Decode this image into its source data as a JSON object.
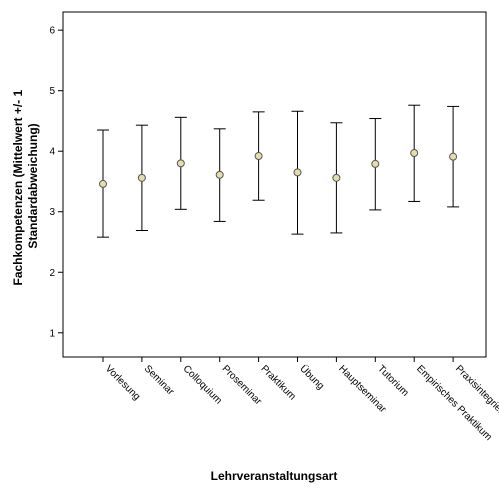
{
  "chart_data": {
    "type": "errorbar",
    "title": "",
    "xlabel": "Lehrveranstaltungsart",
    "ylabel_lines": [
      "Fachkompetenzen (Mittelwert +/- 1",
      "Standardabweichung)"
    ],
    "ylim": [
      0.6,
      6.3
    ],
    "yticks": [
      1,
      2,
      3,
      4,
      5,
      6
    ],
    "categories": [
      "Vorlesung",
      "Seminar",
      "Colloquium",
      "Proseminar",
      "Praktikum",
      "Übung",
      "Hauptseminar",
      "Tutorium",
      "Empirisches Praktikum",
      "Praxisintegriert"
    ],
    "means": [
      3.46,
      3.56,
      3.8,
      3.61,
      3.92,
      3.65,
      3.56,
      3.79,
      3.97,
      3.91
    ],
    "upper": [
      4.35,
      4.43,
      4.56,
      4.37,
      4.65,
      4.66,
      4.47,
      4.54,
      4.76,
      4.74
    ],
    "lower": [
      2.58,
      2.69,
      3.04,
      2.84,
      3.19,
      2.63,
      2.65,
      3.03,
      3.17,
      3.08
    ],
    "grid": false,
    "legend": "none",
    "marker_color": "#e4dfa8",
    "line_color": "#000000"
  }
}
